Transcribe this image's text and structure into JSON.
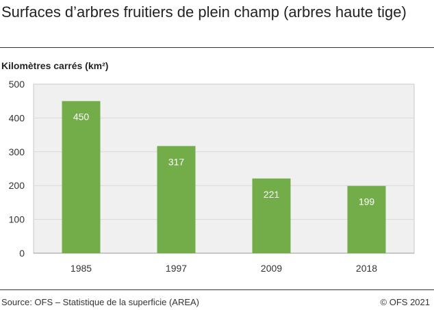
{
  "chart_data": {
    "type": "bar",
    "title": "Surfaces d’arbres fruitiers de plein champ (arbres haute tige)",
    "ylabel": "Kilomètres carrés (km²)",
    "xlabel": "",
    "categories": [
      "1985",
      "1997",
      "2009",
      "2018"
    ],
    "values": [
      450,
      317,
      221,
      199
    ],
    "ylim": [
      0,
      500
    ],
    "yticks": [
      0,
      100,
      200,
      300,
      400,
      500
    ],
    "grid": true,
    "bar_color": "#72ad4a",
    "plot_background": "#f0f0f0"
  },
  "footer": {
    "source": "Source: OFS – Statistique de la superficie (AREA)",
    "copyright": "© OFS 2021"
  }
}
